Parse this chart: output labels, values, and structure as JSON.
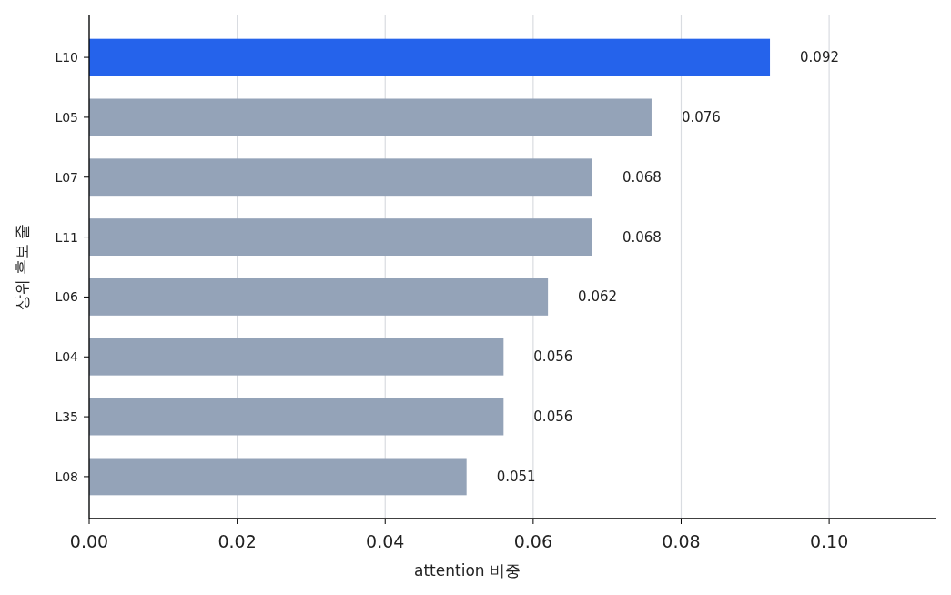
{
  "chart_data": {
    "type": "bar",
    "orientation": "horizontal",
    "categories": [
      "L10",
      "L05",
      "L07",
      "L11",
      "L06",
      "L04",
      "L35",
      "L08"
    ],
    "values": [
      0.092,
      0.076,
      0.068,
      0.068,
      0.062,
      0.056,
      0.056,
      0.051
    ],
    "colors": [
      "#2563eb",
      "#94a3b8",
      "#94a3b8",
      "#94a3b8",
      "#94a3b8",
      "#94a3b8",
      "#94a3b8",
      "#94a3b8"
    ],
    "xlabel": "attention 비중",
    "ylabel": "상위 후보 줄",
    "xlim": [
      0,
      0.1145
    ],
    "xticks": [
      {
        "value": 0,
        "label": "0.00"
      },
      {
        "value": 0.02,
        "label": "0.02"
      },
      {
        "value": 0.04,
        "label": "0.04"
      },
      {
        "value": 0.06,
        "label": "0.06"
      },
      {
        "value": 0.08,
        "label": "0.08"
      },
      {
        "value": 0.1,
        "label": "0.10"
      }
    ],
    "grid": "x",
    "data_labels": true
  }
}
